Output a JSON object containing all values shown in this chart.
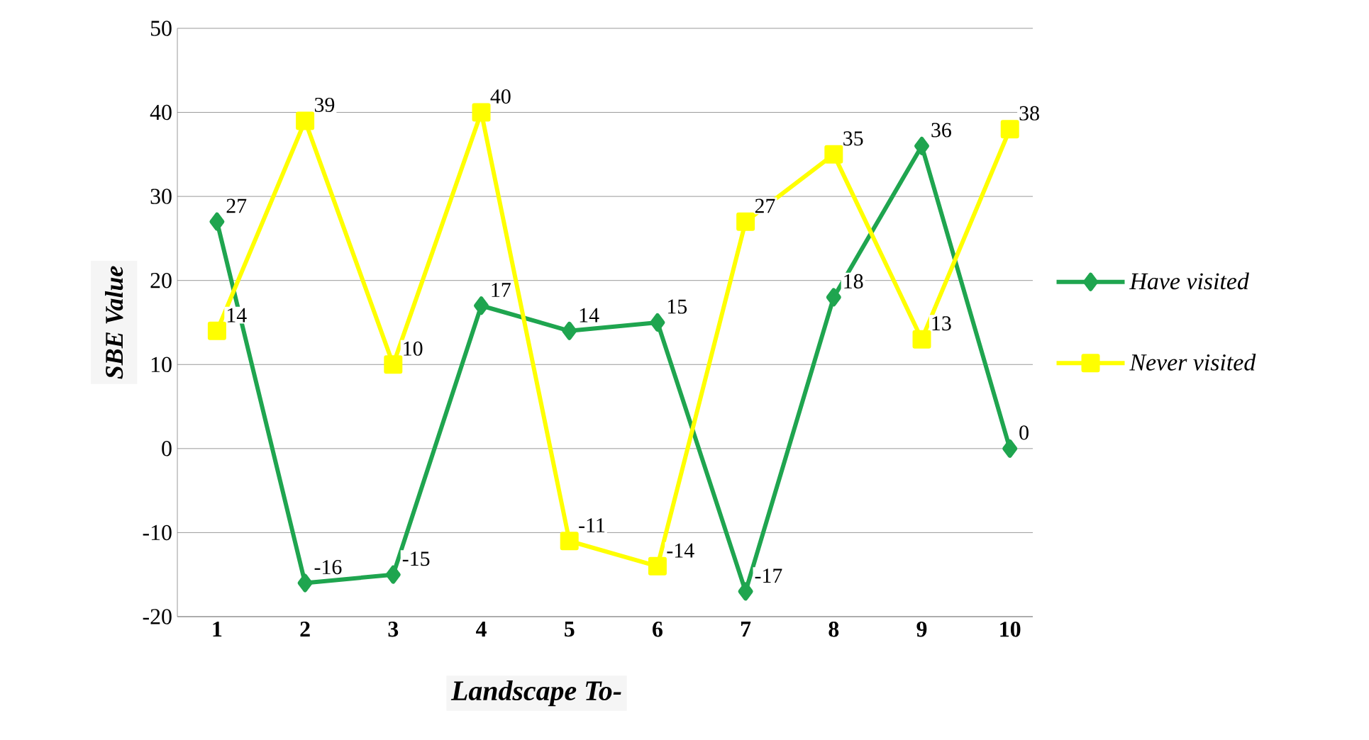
{
  "chart_data": {
    "type": "line",
    "xlabel": "Landscape To-",
    "ylabel": "SBE Value",
    "categories": [
      "1",
      "2",
      "3",
      "4",
      "5",
      "6",
      "7",
      "8",
      "9",
      "10"
    ],
    "series": [
      {
        "name": "Have visited",
        "color": "#1fa54f",
        "marker": "diamond",
        "values": [
          27,
          -16,
          -15,
          17,
          14,
          15,
          -17,
          18,
          36,
          0
        ]
      },
      {
        "name": "Never visited",
        "color": "#ffff00",
        "marker": "square",
        "values": [
          14,
          39,
          10,
          40,
          -11,
          -14,
          27,
          35,
          13,
          38
        ]
      }
    ],
    "ylim": [
      -20,
      50
    ],
    "yticks": [
      -20,
      -10,
      0,
      10,
      20,
      30,
      40,
      50
    ],
    "grid": "y",
    "legend": "right",
    "data_labels": true
  }
}
